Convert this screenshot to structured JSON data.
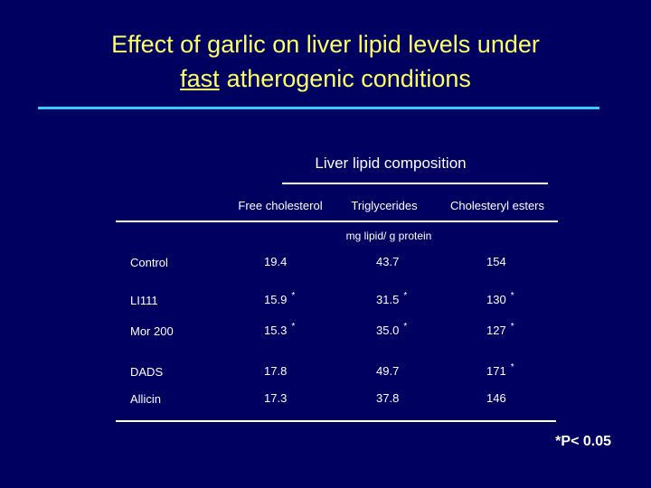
{
  "header": {
    "title_line1": "Effect of garlic on liver lipid levels under",
    "title_underlined": "fast",
    "title_line2": "atherogenic conditions"
  },
  "table": {
    "caption": "Liver lipid composition",
    "columns": [
      "Free cholesterol",
      "Triglycerides",
      "Cholesteryl esters"
    ],
    "unit": "mg lipid/ g protein",
    "rows": [
      {
        "label": "Control",
        "cells": [
          {
            "value": "19.4"
          },
          {
            "value": "43.7"
          },
          {
            "value": "154"
          }
        ]
      },
      {
        "label": "LI111",
        "cells": [
          {
            "value": "15.9",
            "sig": "*"
          },
          {
            "value": "31.5",
            "sig": "*"
          },
          {
            "value": "130",
            "sig": "*"
          }
        ]
      },
      {
        "label": "Mor 200",
        "cells": [
          {
            "value": "15.3",
            "sig": "*"
          },
          {
            "value": "35.0",
            "sig": "*"
          },
          {
            "value": "127",
            "sig": "*"
          }
        ]
      },
      {
        "label": "DADS",
        "cells": [
          {
            "value": "17.8"
          },
          {
            "value": "49.7"
          },
          {
            "value": "171",
            "sig": "*"
          }
        ]
      },
      {
        "label": "Allicin",
        "cells": [
          {
            "value": "17.3"
          },
          {
            "value": "37.8"
          },
          {
            "value": "146"
          }
        ]
      }
    ]
  },
  "footnote": "*P< 0.05"
}
